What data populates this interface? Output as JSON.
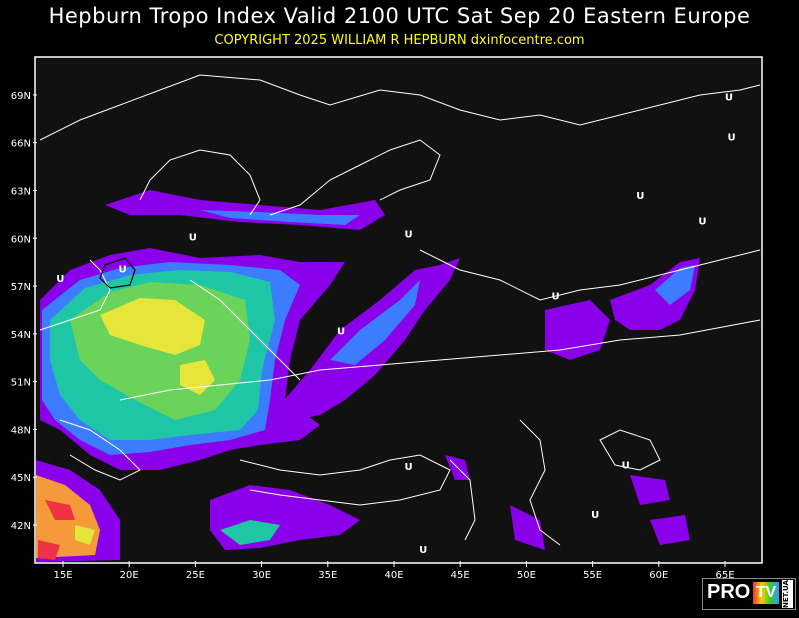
{
  "header": {
    "title": "Hepburn Tropo Index Valid 2100 UTC Sat Sep 20 Eastern Europe",
    "copyright": "COPYRIGHT 2025   WILLIAM R HEPBURN   dxinfocentre.com"
  },
  "map": {
    "lat_labels": [
      "69N",
      "66N",
      "63N",
      "60N",
      "57N",
      "54N",
      "51N",
      "48N",
      "45N",
      "42N"
    ],
    "lon_labels": [
      "15E",
      "20E",
      "25E",
      "30E",
      "35E",
      "40E",
      "45E",
      "50E",
      "55E",
      "60E",
      "65E"
    ],
    "background": "#111111",
    "index_colors": [
      "#8b00ea",
      "#3c7cff",
      "#1fc6a6",
      "#6ad35a",
      "#e6e63a",
      "#f59a3a",
      "#ee3344",
      "#ff88cc"
    ],
    "u_markers": [
      {
        "label": "U",
        "lon": 65.3,
        "lat": 68.9
      },
      {
        "label": "U",
        "lon": 65.5,
        "lat": 66.4
      },
      {
        "label": "U",
        "lon": 58.6,
        "lat": 62.7
      },
      {
        "label": "U",
        "lon": 63.3,
        "lat": 61.1
      },
      {
        "label": "U",
        "lon": 41.1,
        "lat": 60.3
      },
      {
        "label": "U",
        "lon": 24.8,
        "lat": 60.1
      },
      {
        "label": "U",
        "lon": 14.8,
        "lat": 57.5
      },
      {
        "label": "U",
        "lon": 19.5,
        "lat": 58.1
      },
      {
        "label": "U",
        "lon": 52.2,
        "lat": 56.4
      },
      {
        "label": "U",
        "lon": 36.0,
        "lat": 54.2
      },
      {
        "label": "U",
        "lon": 41.1,
        "lat": 45.7
      },
      {
        "label": "U",
        "lon": 57.5,
        "lat": 45.8
      },
      {
        "label": "U",
        "lon": 55.2,
        "lat": 42.7
      },
      {
        "label": "U",
        "lon": 42.2,
        "lat": 40.5
      }
    ]
  },
  "logo": {
    "pro": "PRO",
    "tv": "TV",
    "net": "NET.UA"
  }
}
